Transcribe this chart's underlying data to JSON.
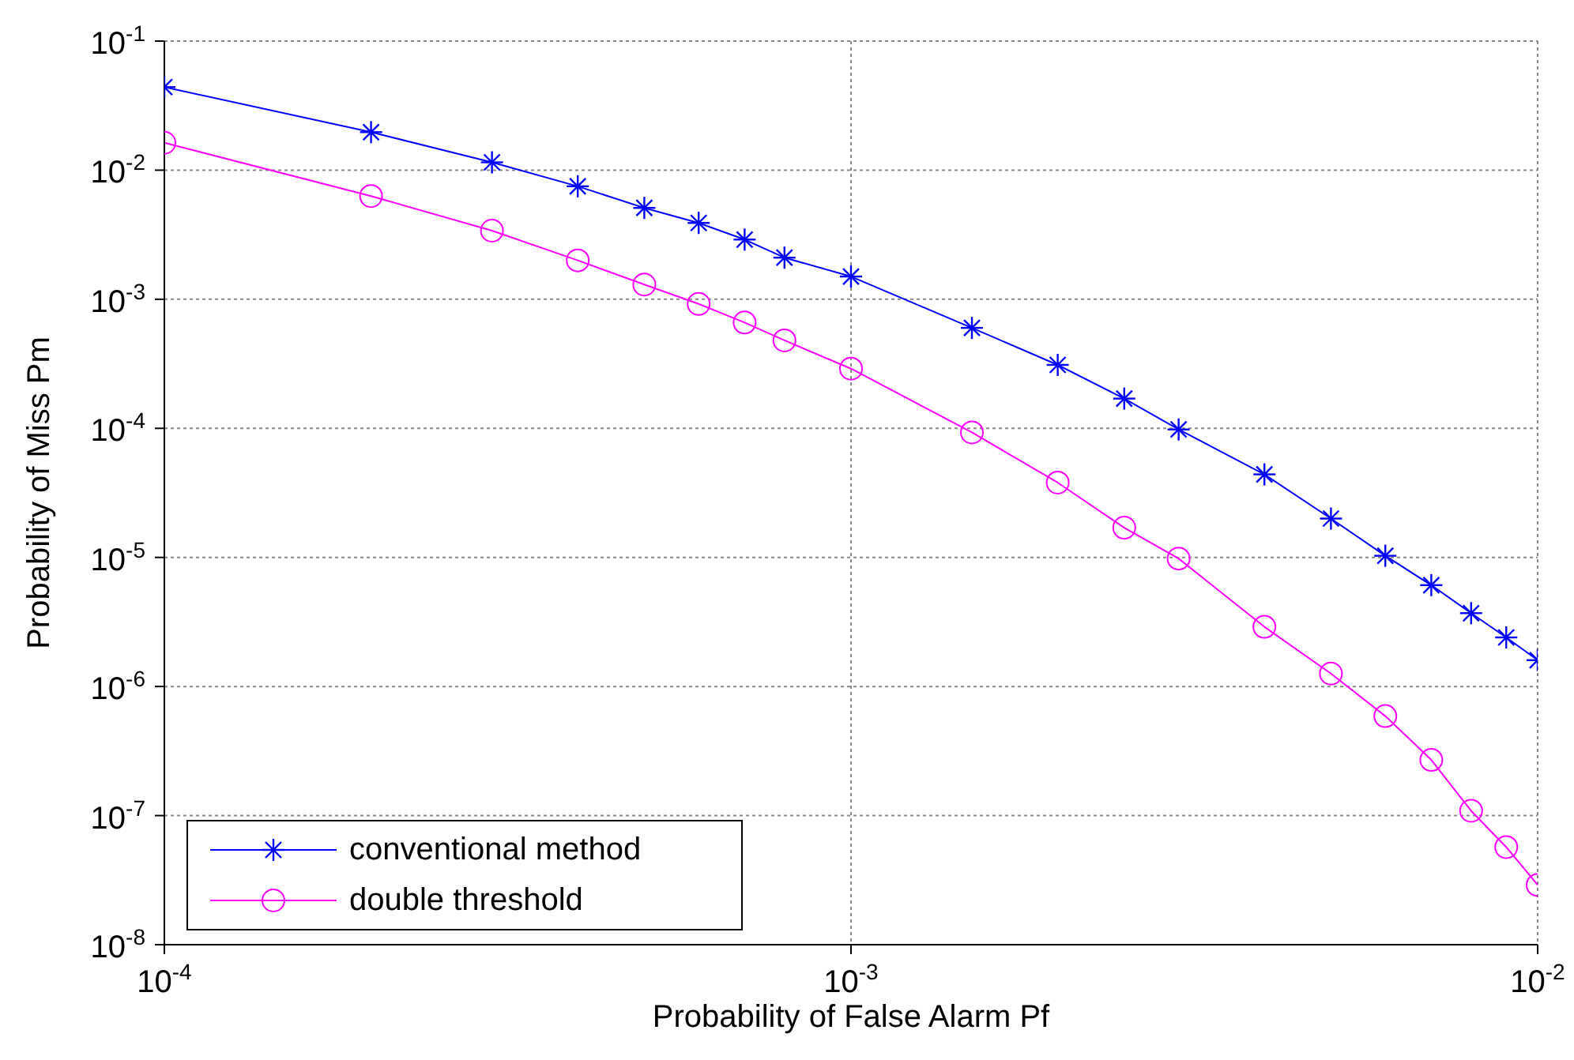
{
  "chart_data": {
    "type": "line",
    "xlabel": "Probability of False Alarm Pf",
    "ylabel": "Probability of Miss Pm",
    "log": "xy",
    "grid": true,
    "legend": "bottom left",
    "xlim": [
      0.0001,
      0.01
    ],
    "xticks": [
      {
        "value": 0.0001,
        "label": "10$^{-4}$"
      },
      {
        "value": 0.001,
        "label": "10$^{-3}$"
      },
      {
        "value": 0.01,
        "label": "10$^{-2}$"
      }
    ],
    "ylim": [
      1e-08,
      0.1
    ],
    "yticks": [
      {
        "value": 1e-08,
        "label": "10$^{-8}$"
      },
      {
        "value": 1e-07,
        "label": "10$^{-7}$"
      },
      {
        "value": 1e-06,
        "label": "10$^{-6}$"
      },
      {
        "value": 1e-05,
        "label": "10$^{-5}$"
      },
      {
        "value": 0.0001,
        "label": "10$^{-4}$"
      },
      {
        "value": 0.001,
        "label": "10$^{-3}$"
      },
      {
        "value": 0.01,
        "label": "10$^{-2}$"
      },
      {
        "value": 0.1,
        "label": "10$^{-1}$"
      }
    ],
    "x": [
      0.0001,
      0.0002,
      0.0003,
      0.0004,
      0.0005,
      0.0006,
      0.0007,
      0.0008,
      0.001,
      0.0015,
      0.002,
      0.0025,
      0.003,
      0.004,
      0.005,
      0.006,
      0.007,
      0.008,
      0.009,
      0.01
    ],
    "series": [
      {
        "name": "conventional method",
        "color": "#0000ff",
        "marker": "cross",
        "values": [
          0.044,
          0.0197,
          0.0115,
          0.0075,
          0.0051,
          0.0039,
          0.0029,
          0.0021,
          0.0015,
          0.0006,
          0.00031,
          0.00017,
          9.8e-05,
          4.4e-05,
          2e-05,
          1.03e-05,
          6.1e-06,
          3.7e-06,
          2.4e-06,
          1.6e-06
        ]
      },
      {
        "name": "double threshold",
        "color": "#ff00ff",
        "marker": "circle",
        "values": [
          0.0163,
          0.0063,
          0.0034,
          0.002,
          0.0013,
          0.00092,
          0.00066,
          0.00048,
          0.00029,
          9.3e-05,
          3.8e-05,
          1.7e-05,
          9.8e-06,
          2.9e-06,
          1.26e-06,
          5.9e-07,
          2.7e-07,
          1.09e-07,
          5.7e-08,
          2.9e-08
        ]
      }
    ]
  }
}
